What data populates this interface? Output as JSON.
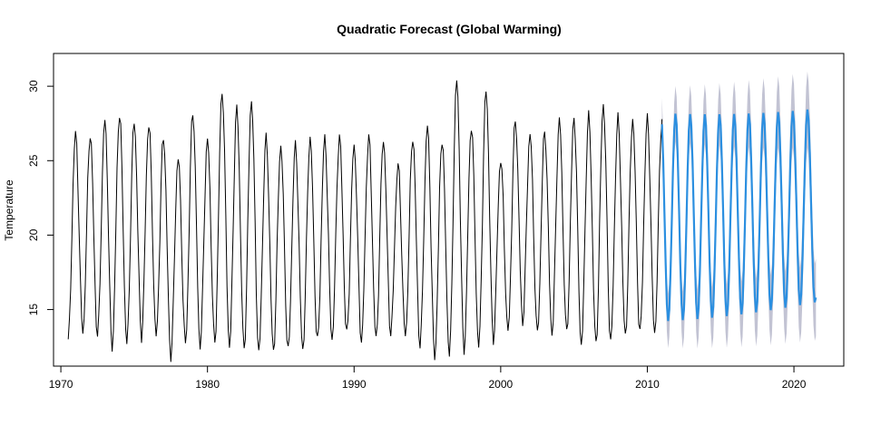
{
  "chart_data": {
    "type": "line",
    "title": "Quadratic Forecast (Global Warming)",
    "xlabel": "",
    "ylabel": "Temperature",
    "xlim": [
      1969.5,
      2023.4
    ],
    "ylim": [
      11.2,
      32.2
    ],
    "x_ticks": [
      1970,
      1980,
      1990,
      2000,
      2010,
      2020
    ],
    "y_ticks": [
      15,
      20,
      25,
      30
    ],
    "grid": false,
    "legend": "none",
    "series": [
      {
        "role": "observed",
        "color": "#000000",
        "start": 1970.5,
        "end": 2011.0,
        "step": 0.0833333,
        "peaks": [
          26.8,
          26.8,
          27.7,
          28.2,
          27.6,
          27.5,
          26.6,
          25.2,
          28.3,
          26.4,
          29.7,
          28.5,
          29.1,
          26.5,
          26.0,
          26.0,
          26.5,
          26.5,
          26.6,
          26.0,
          26.6,
          26.4,
          24.7,
          26.6,
          27.3,
          26.5,
          30.4,
          27.4,
          29.7,
          25.1,
          27.7,
          26.8,
          27.0,
          27.7,
          27.9,
          28.0,
          28.8,
          27.8,
          27.8
        ],
        "troughs": [
          13.0,
          13.5,
          13.2,
          12.5,
          12.7,
          13.2,
          13.2,
          11.9,
          12.7,
          12.6,
          12.7,
          12.5,
          12.3,
          12.1,
          12.2,
          12.2,
          12.3,
          12.8,
          13.0,
          13.3,
          12.9,
          13.0,
          13.4,
          13.2,
          12.6,
          11.8,
          12.0,
          12.3,
          12.5,
          13.0,
          13.5,
          14.2,
          13.4,
          13.4,
          13.4,
          12.6,
          12.6,
          12.8,
          13.2,
          13.4
        ]
      },
      {
        "role": "forecast",
        "color": "#2b8fe0",
        "band_color": "#c2c3d3",
        "start": 2011.0,
        "end": 2021.5,
        "step": 0.0833333,
        "mean_start": 21.2,
        "mean_end": 22.0,
        "amp_start": 7.0,
        "amp_end": 6.5,
        "band_start": 1.8,
        "band_end": 2.6,
        "end_value": 15.8
      }
    ]
  }
}
